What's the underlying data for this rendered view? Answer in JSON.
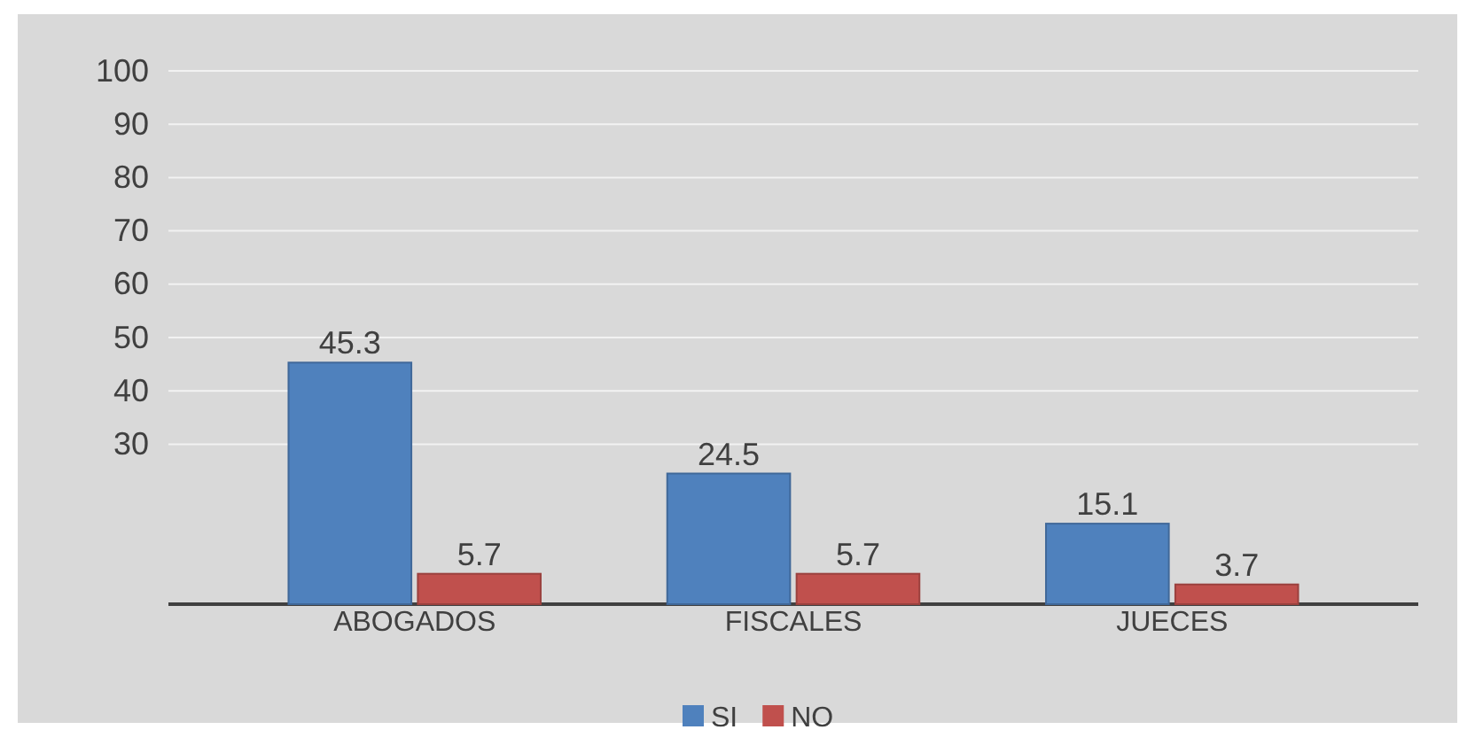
{
  "chart_data": {
    "type": "bar",
    "categories": [
      "ABOGADOS",
      "FISCALES",
      "JUECES"
    ],
    "series": [
      {
        "name": "SI",
        "color": "#4f81bd",
        "values": [
          45.3,
          24.5,
          15.1
        ]
      },
      {
        "name": "NO",
        "color": "#c0504d",
        "values": [
          5.7,
          5.7,
          3.7
        ]
      }
    ],
    "ylim": [
      0,
      100
    ],
    "yticks": [
      30,
      40,
      50,
      60,
      70,
      80,
      90,
      100
    ],
    "grid": "y",
    "legend": "bottom",
    "data_labels": true
  }
}
